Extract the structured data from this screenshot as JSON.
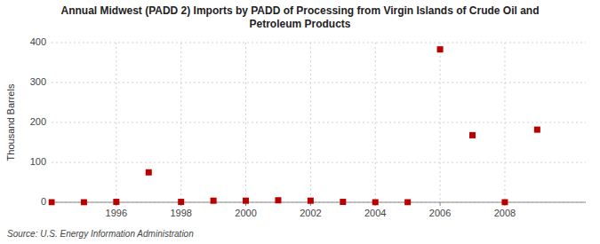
{
  "chart_data": {
    "type": "scatter",
    "title": "Annual Midwest (PADD 2) Imports by PADD of Processing from Virgin Islands of Crude Oil and\nPetroleum Products",
    "ylabel": "Thousand Barrels",
    "source": "Source: U.S. Energy Information Administration",
    "x": [
      1994,
      1995,
      1996,
      1997,
      1998,
      1999,
      2000,
      2001,
      2002,
      2003,
      2004,
      2005,
      2006,
      2007,
      2008,
      2009
    ],
    "values": [
      0,
      0,
      1,
      75,
      1,
      4,
      4,
      5,
      4,
      1,
      0,
      0,
      383,
      168,
      0,
      182
    ],
    "color": "#bb0000",
    "marker": "square",
    "xlim": [
      1994.0,
      2010.5
    ],
    "xticks": [
      1996,
      1998,
      2000,
      2002,
      2004,
      2006,
      2008
    ],
    "ylim": [
      0,
      400
    ],
    "yticks": [
      0,
      100,
      200,
      300,
      400
    ],
    "grid": true
  }
}
